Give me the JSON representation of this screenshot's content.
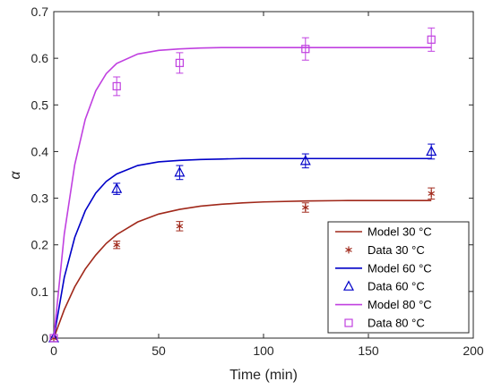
{
  "chart_data": {
    "type": "line",
    "xlabel": "Time (min)",
    "ylabel": "α",
    "xlim": [
      0,
      200
    ],
    "ylim": [
      0,
      0.7
    ],
    "xticks": [
      0,
      50,
      100,
      150,
      200
    ],
    "yticks": [
      0,
      0.1,
      0.2,
      0.3,
      0.4,
      0.5,
      0.6,
      0.7
    ],
    "grid": false,
    "legend_position": "bottom-right",
    "series": [
      {
        "name": "Model 30 °C",
        "kind": "line",
        "color": "#a0281a",
        "x": [
          0,
          5,
          10,
          15,
          20,
          25,
          30,
          40,
          50,
          60,
          70,
          80,
          90,
          100,
          120,
          140,
          160,
          180
        ],
        "y": [
          0,
          0.061,
          0.11,
          0.148,
          0.178,
          0.203,
          0.222,
          0.249,
          0.266,
          0.276,
          0.283,
          0.287,
          0.29,
          0.292,
          0.294,
          0.295,
          0.295,
          0.295
        ]
      },
      {
        "name": "Data 30 °C",
        "kind": "points",
        "marker": "asterisk",
        "color": "#a0281a",
        "x": [
          0,
          30,
          60,
          120,
          180
        ],
        "y": [
          0,
          0.2,
          0.24,
          0.28,
          0.31
        ],
        "err": [
          0,
          0.008,
          0.01,
          0.01,
          0.012
        ]
      },
      {
        "name": "Model 60 °C",
        "kind": "line",
        "color": "#0000c8",
        "x": [
          0,
          5,
          10,
          15,
          20,
          25,
          30,
          40,
          50,
          60,
          70,
          80,
          90,
          100,
          120,
          140,
          160,
          180
        ],
        "y": [
          0,
          0.13,
          0.216,
          0.273,
          0.311,
          0.336,
          0.352,
          0.37,
          0.378,
          0.381,
          0.383,
          0.384,
          0.385,
          0.385,
          0.385,
          0.385,
          0.385,
          0.385
        ]
      },
      {
        "name": "Data 60 °C",
        "kind": "points",
        "marker": "triangle",
        "color": "#0000c8",
        "x": [
          0,
          30,
          60,
          120,
          180
        ],
        "y": [
          0,
          0.32,
          0.355,
          0.38,
          0.4
        ],
        "err": [
          0,
          0.012,
          0.015,
          0.015,
          0.016
        ]
      },
      {
        "name": "Model 80 °C",
        "kind": "line",
        "color": "#c040e0",
        "x": [
          0,
          5,
          10,
          15,
          20,
          25,
          30,
          40,
          50,
          60,
          70,
          80,
          90,
          100,
          120,
          140,
          160,
          180
        ],
        "y": [
          0,
          0.223,
          0.372,
          0.469,
          0.53,
          0.567,
          0.589,
          0.609,
          0.617,
          0.62,
          0.622,
          0.623,
          0.623,
          0.623,
          0.623,
          0.623,
          0.623,
          0.623
        ]
      },
      {
        "name": "Data 80 °C",
        "kind": "points",
        "marker": "square",
        "color": "#c040e0",
        "x": [
          0,
          30,
          60,
          120,
          180
        ],
        "y": [
          0,
          0.54,
          0.59,
          0.62,
          0.64
        ],
        "err": [
          0,
          0.02,
          0.022,
          0.024,
          0.025
        ]
      }
    ]
  }
}
